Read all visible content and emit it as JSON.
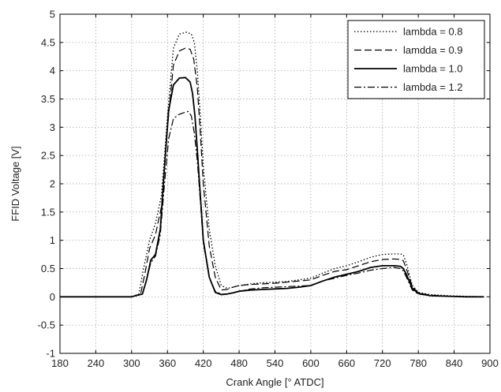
{
  "chart_data": {
    "type": "line",
    "xlabel": "Crank Angle [° ATDC]",
    "ylabel": "FFID Voltage [V]",
    "xlim": [
      180,
      900
    ],
    "ylim": [
      -1,
      5
    ],
    "xticks": [
      180,
      240,
      300,
      360,
      420,
      480,
      540,
      600,
      660,
      720,
      780,
      840,
      900
    ],
    "yticks": [
      -1,
      -0.5,
      0,
      0.5,
      1,
      1.5,
      2,
      2.5,
      3,
      3.5,
      4,
      4.5,
      5
    ],
    "xtick_labels": [
      "180",
      "240",
      "300",
      "360",
      "420",
      "480",
      "540",
      "600",
      "660",
      "720",
      "780",
      "840",
      "900"
    ],
    "ytick_labels": [
      "-1",
      "-0.5",
      "0",
      "0.5",
      "1",
      "1.5",
      "2",
      "2.5",
      "3",
      "3.5",
      "4",
      "4.5",
      "5"
    ],
    "grid": true,
    "legend_position": "top-right",
    "series": [
      {
        "name": "lambda = 0.8",
        "line_style": "dotted",
        "x": [
          180,
          260,
          300,
          312,
          320,
          330,
          340,
          350,
          360,
          370,
          380,
          392,
          400,
          405,
          410,
          415,
          420,
          430,
          440,
          450,
          460,
          470,
          480,
          500,
          520,
          540,
          560,
          580,
          600,
          620,
          640,
          660,
          680,
          700,
          720,
          740,
          750,
          755,
          760,
          770,
          780,
          800,
          830,
          860,
          890
        ],
        "y": [
          0,
          0,
          0,
          0.05,
          0.5,
          1.0,
          1.3,
          1.8,
          3.2,
          4.4,
          4.65,
          4.68,
          4.65,
          4.5,
          4.0,
          3.2,
          2.3,
          1.2,
          0.55,
          0.2,
          0.15,
          0.17,
          0.2,
          0.23,
          0.25,
          0.26,
          0.27,
          0.3,
          0.33,
          0.42,
          0.5,
          0.55,
          0.62,
          0.7,
          0.75,
          0.76,
          0.76,
          0.74,
          0.6,
          0.2,
          0.08,
          0.04,
          0.02,
          0.01,
          0
        ]
      },
      {
        "name": "lamdda = 0.9",
        "line_style": "dashed",
        "x": [
          180,
          260,
          300,
          315,
          322,
          330,
          340,
          350,
          360,
          370,
          380,
          390,
          398,
          404,
          410,
          415,
          420,
          430,
          440,
          450,
          460,
          470,
          480,
          500,
          520,
          540,
          560,
          580,
          600,
          620,
          640,
          660,
          680,
          700,
          720,
          740,
          750,
          755,
          760,
          770,
          780,
          800,
          830,
          860,
          890
        ],
        "y": [
          0,
          0,
          0,
          0.05,
          0.4,
          0.85,
          1.1,
          1.6,
          3.0,
          4.1,
          4.35,
          4.4,
          4.38,
          4.2,
          3.7,
          2.9,
          2.0,
          0.9,
          0.35,
          0.12,
          0.13,
          0.17,
          0.2,
          0.22,
          0.23,
          0.24,
          0.26,
          0.28,
          0.3,
          0.38,
          0.45,
          0.48,
          0.55,
          0.62,
          0.66,
          0.67,
          0.66,
          0.64,
          0.5,
          0.18,
          0.07,
          0.03,
          0.01,
          0,
          0
        ]
      },
      {
        "name": "lambda = 1.0",
        "line_style": "solid",
        "x": [
          180,
          260,
          300,
          318,
          325,
          332,
          340,
          348,
          355,
          362,
          370,
          380,
          390,
          398,
          402,
          406,
          410,
          415,
          420,
          430,
          440,
          450,
          460,
          470,
          480,
          500,
          520,
          540,
          560,
          580,
          600,
          620,
          640,
          660,
          680,
          700,
          720,
          740,
          750,
          755,
          760,
          770,
          780,
          800,
          830,
          860,
          890
        ],
        "y": [
          0,
          0,
          0,
          0.05,
          0.3,
          0.65,
          0.75,
          1.2,
          2.3,
          3.3,
          3.75,
          3.87,
          3.88,
          3.8,
          3.6,
          3.2,
          2.6,
          1.8,
          1.0,
          0.35,
          0.08,
          0.04,
          0.05,
          0.07,
          0.1,
          0.12,
          0.13,
          0.14,
          0.15,
          0.17,
          0.2,
          0.28,
          0.35,
          0.4,
          0.45,
          0.52,
          0.55,
          0.55,
          0.54,
          0.5,
          0.4,
          0.15,
          0.06,
          0.02,
          0.01,
          0,
          0
        ]
      },
      {
        "name": "lambda = 1.2",
        "line_style": "dashdot",
        "x": [
          180,
          260,
          300,
          318,
          325,
          332,
          340,
          348,
          355,
          362,
          370,
          378,
          385,
          395,
          400,
          405,
          410,
          415,
          420,
          430,
          440,
          450,
          460,
          470,
          480,
          500,
          520,
          540,
          560,
          580,
          600,
          620,
          640,
          660,
          680,
          700,
          720,
          740,
          750,
          755,
          760,
          770,
          780,
          800,
          830,
          860,
          890
        ],
        "y": [
          0,
          0,
          0,
          0.05,
          0.3,
          0.6,
          0.72,
          1.1,
          2.0,
          2.8,
          3.15,
          3.22,
          3.25,
          3.28,
          3.2,
          2.9,
          2.4,
          1.7,
          0.95,
          0.35,
          0.1,
          0.05,
          0.05,
          0.07,
          0.1,
          0.14,
          0.16,
          0.17,
          0.18,
          0.19,
          0.2,
          0.28,
          0.33,
          0.38,
          0.42,
          0.47,
          0.5,
          0.52,
          0.5,
          0.46,
          0.35,
          0.12,
          0.05,
          0.02,
          0.01,
          0,
          0
        ]
      }
    ]
  }
}
